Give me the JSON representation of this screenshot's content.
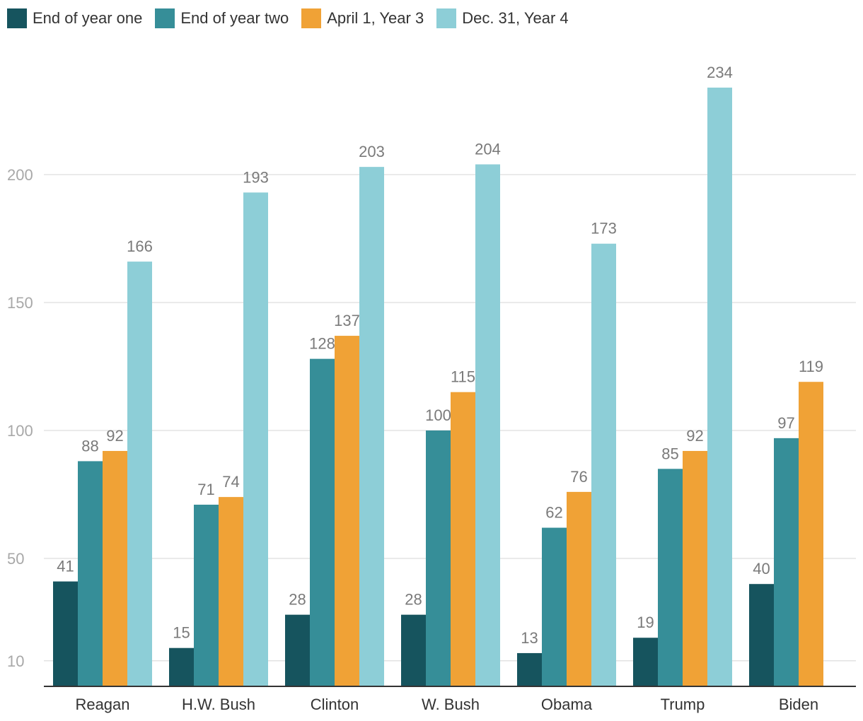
{
  "chart_data": {
    "type": "bar",
    "title": "",
    "xlabel": "",
    "ylabel": "",
    "categories": [
      "Reagan",
      "H.W. Bush",
      "Clinton",
      "W. Bush",
      "Obama",
      "Trump",
      "Biden"
    ],
    "series": [
      {
        "name": "End of year one",
        "color": "#16545e",
        "values": [
          41,
          15,
          28,
          28,
          13,
          19,
          40
        ]
      },
      {
        "name": "End of year two",
        "color": "#368e98",
        "values": [
          88,
          71,
          128,
          100,
          62,
          85,
          97
        ]
      },
      {
        "name": "April 1, Year 3",
        "color": "#f0a236",
        "values": [
          92,
          74,
          137,
          115,
          76,
          92,
          119
        ]
      },
      {
        "name": "Dec. 31, Year 4",
        "color": "#8dced7",
        "values": [
          166,
          193,
          203,
          204,
          173,
          234,
          null
        ]
      }
    ],
    "yticks": [
      10,
      50,
      100,
      150,
      200
    ],
    "ylim": [
      0,
      234
    ],
    "grid": true,
    "legend_position": "top-left"
  }
}
